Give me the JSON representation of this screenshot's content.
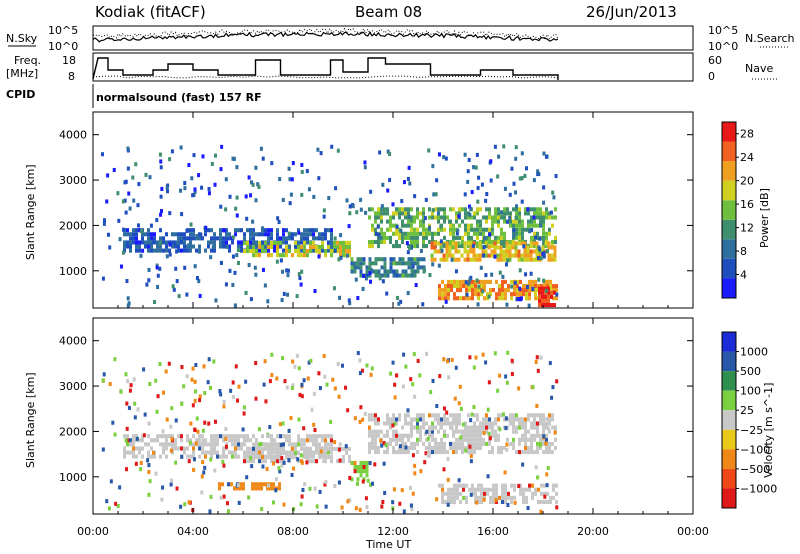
{
  "header": {
    "station": "Kodiak (fitACF)",
    "beam": "Beam 08",
    "date": "26/Jun/2013"
  },
  "labels": {
    "nsky": "N.Sky",
    "nsearch": "N.Search",
    "freq_line1": "Freq.",
    "freq_line2": "[MHz]",
    "nave": "Nave",
    "cpid": "CPID",
    "cpid_value": "normalsound (fast) 157 RF",
    "noise_top": "10^5",
    "noise_bottom": "10^0",
    "freq_top": "18",
    "freq_bottom": "8",
    "nave_top": "60",
    "nave_bottom": "0"
  },
  "chart_data": [
    {
      "type": "heatmap",
      "panel": "power",
      "xlabel": "Time UT",
      "ylabel": "Slant Range [km]",
      "xlim": [
        "00:00",
        "24:00"
      ],
      "ylim": [
        180,
        4500
      ],
      "xticks": [
        "00:00",
        "04:00",
        "08:00",
        "12:00",
        "16:00",
        "20:00",
        "00:00"
      ],
      "yticks": [
        1000,
        2000,
        3000,
        4000
      ],
      "colorbar": {
        "label": "Power [dB]",
        "ticks": [
          4,
          8,
          12,
          16,
          20,
          24,
          28
        ],
        "range": [
          0,
          30
        ],
        "colors": [
          "#1b1bff",
          "#1f4fbf",
          "#2f6f9f",
          "#3f8f6f",
          "#6fbf3f",
          "#cfd020",
          "#f0a020",
          "#f06020",
          "#e81818"
        ]
      },
      "regions": [
        {
          "t0": 1.2,
          "t1": 9.5,
          "r0": 1400,
          "r1": 1900,
          "level": 6
        },
        {
          "t0": 6.0,
          "t1": 10.2,
          "r0": 1300,
          "r1": 1600,
          "level": 18
        },
        {
          "t0": 10.3,
          "t1": 13.2,
          "r0": 850,
          "r1": 1250,
          "level": 10
        },
        {
          "t0": 11.0,
          "t1": 18.5,
          "r0": 1500,
          "r1": 2400,
          "level": 14
        },
        {
          "t0": 13.5,
          "t1": 18.5,
          "r0": 1200,
          "r1": 1600,
          "level": 20
        },
        {
          "t0": 13.8,
          "t1": 18.5,
          "r0": 350,
          "r1": 800,
          "level": 22
        },
        {
          "t0": 17.8,
          "t1": 18.5,
          "r0": 200,
          "r1": 650,
          "level": 28
        }
      ]
    },
    {
      "type": "heatmap",
      "panel": "velocity",
      "xlabel": "Time UT",
      "ylabel": "Slant Range [km]",
      "xlim": [
        "00:00",
        "24:00"
      ],
      "ylim": [
        180,
        4500
      ],
      "xticks": [
        "00:00",
        "04:00",
        "08:00",
        "12:00",
        "16:00",
        "20:00",
        "00:00"
      ],
      "yticks": [
        1000,
        2000,
        3000,
        4000
      ],
      "colorbar": {
        "label": "Velocity [m s^-1]",
        "ticks": [
          "1000",
          "500",
          "100",
          "25",
          "−25",
          "−100",
          "−500",
          "−1000"
        ],
        "colors": [
          "#1b2bd8",
          "#2858a8",
          "#2f8f4f",
          "#7ad040",
          "#c8c8c8",
          "#e8c818",
          "#f08818",
          "#f04818",
          "#e01818"
        ]
      },
      "regions": [
        {
          "t0": 1.2,
          "t1": 9.5,
          "r0": 1400,
          "r1": 1900,
          "level": "25"
        },
        {
          "t0": 6.0,
          "t1": 10.2,
          "r0": 1300,
          "r1": 1600,
          "level": "25"
        },
        {
          "t0": 10.3,
          "t1": 11.0,
          "r0": 900,
          "r1": 1300,
          "level": "100"
        },
        {
          "t0": 11.0,
          "t1": 18.5,
          "r0": 1500,
          "r1": 2400,
          "level": "25"
        },
        {
          "t0": 13.8,
          "t1": 18.5,
          "r0": 400,
          "r1": 800,
          "level": "25"
        },
        {
          "t0": 5.0,
          "t1": 7.5,
          "r0": 700,
          "r1": 850,
          "level": "-500"
        }
      ]
    }
  ]
}
